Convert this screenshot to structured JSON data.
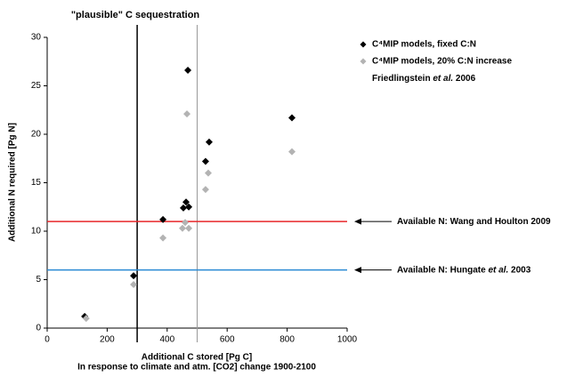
{
  "chart_data": {
    "type": "scatter",
    "title": "\"plausible\" C sequestration",
    "x_label": "Additional C stored [Pg C]",
    "x_sublabel": "In response to climate and atm. [CO2] change 1900-2100",
    "y_label": "Additional N required [Pg N]",
    "xlim": [
      0,
      1000
    ],
    "xticks": [
      0,
      200,
      400,
      600,
      800,
      1000
    ],
    "ylim": [
      0,
      30
    ],
    "yticks": [
      0,
      5,
      10,
      15,
      20,
      25,
      30
    ],
    "series": [
      {
        "name": "C⁴MIP models, fixed C:N",
        "color": "#000000",
        "x": [
          125,
          288,
          386,
          469,
          454,
          463,
          472,
          528,
          540,
          816
        ],
        "values": [
          1.2,
          5.4,
          11.2,
          26.6,
          12.4,
          13.0,
          12.5,
          17.2,
          19.2,
          21.7
        ]
      },
      {
        "name": "C⁴MIP models, 20% C:N increase",
        "color": "#b3b3b3",
        "x": [
          130,
          288,
          386,
          466,
          451,
          460,
          472,
          528,
          537,
          816
        ],
        "values": [
          1.0,
          4.5,
          9.3,
          22.1,
          10.3,
          10.9,
          10.3,
          14.3,
          16.0,
          18.2
        ]
      }
    ],
    "legend_note_parts": [
      "Friedlingstein ",
      "et al.",
      " 2006"
    ],
    "vlines": [
      {
        "value": 300,
        "color": "#000000"
      },
      {
        "value": 500,
        "color": "#999999"
      }
    ],
    "hlines": [
      {
        "value": 11,
        "color": "#e8262a",
        "label_parts": [
          "Available N: Wang and Houlton 2009"
        ]
      },
      {
        "value": 6,
        "color": "#2a8ad4",
        "label_parts": [
          "Available N: Hungate ",
          "et al.",
          " 2003"
        ]
      }
    ]
  }
}
